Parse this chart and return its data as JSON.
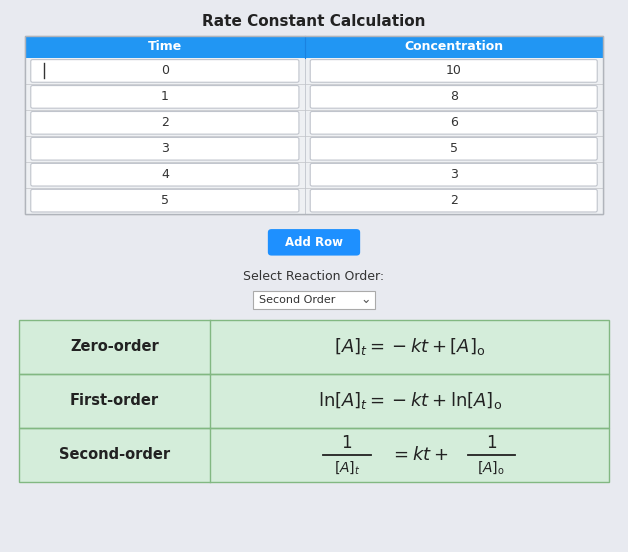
{
  "title": "Rate Constant Calculation",
  "title_fontsize": 11,
  "header_bg": "#2196F3",
  "header_text_color": "#ffffff",
  "header_labels": [
    "Time",
    "Concentration"
  ],
  "time_values": [
    0,
    1,
    2,
    3,
    4,
    5
  ],
  "conc_values": [
    10,
    8,
    6,
    5,
    3,
    2
  ],
  "outer_bg": "#e8eaf0",
  "button_bg": "#1e90ff",
  "button_text": "Add Row",
  "button_text_color": "#ffffff",
  "select_label": "Select Reaction Order:",
  "select_value": "Second Order",
  "green_bg": "#d4edda",
  "green_border": "#82b882",
  "order_labels": [
    "Zero-order",
    "First-order",
    "Second-order"
  ],
  "figw": 6.28,
  "figh": 5.52,
  "dpi": 100
}
